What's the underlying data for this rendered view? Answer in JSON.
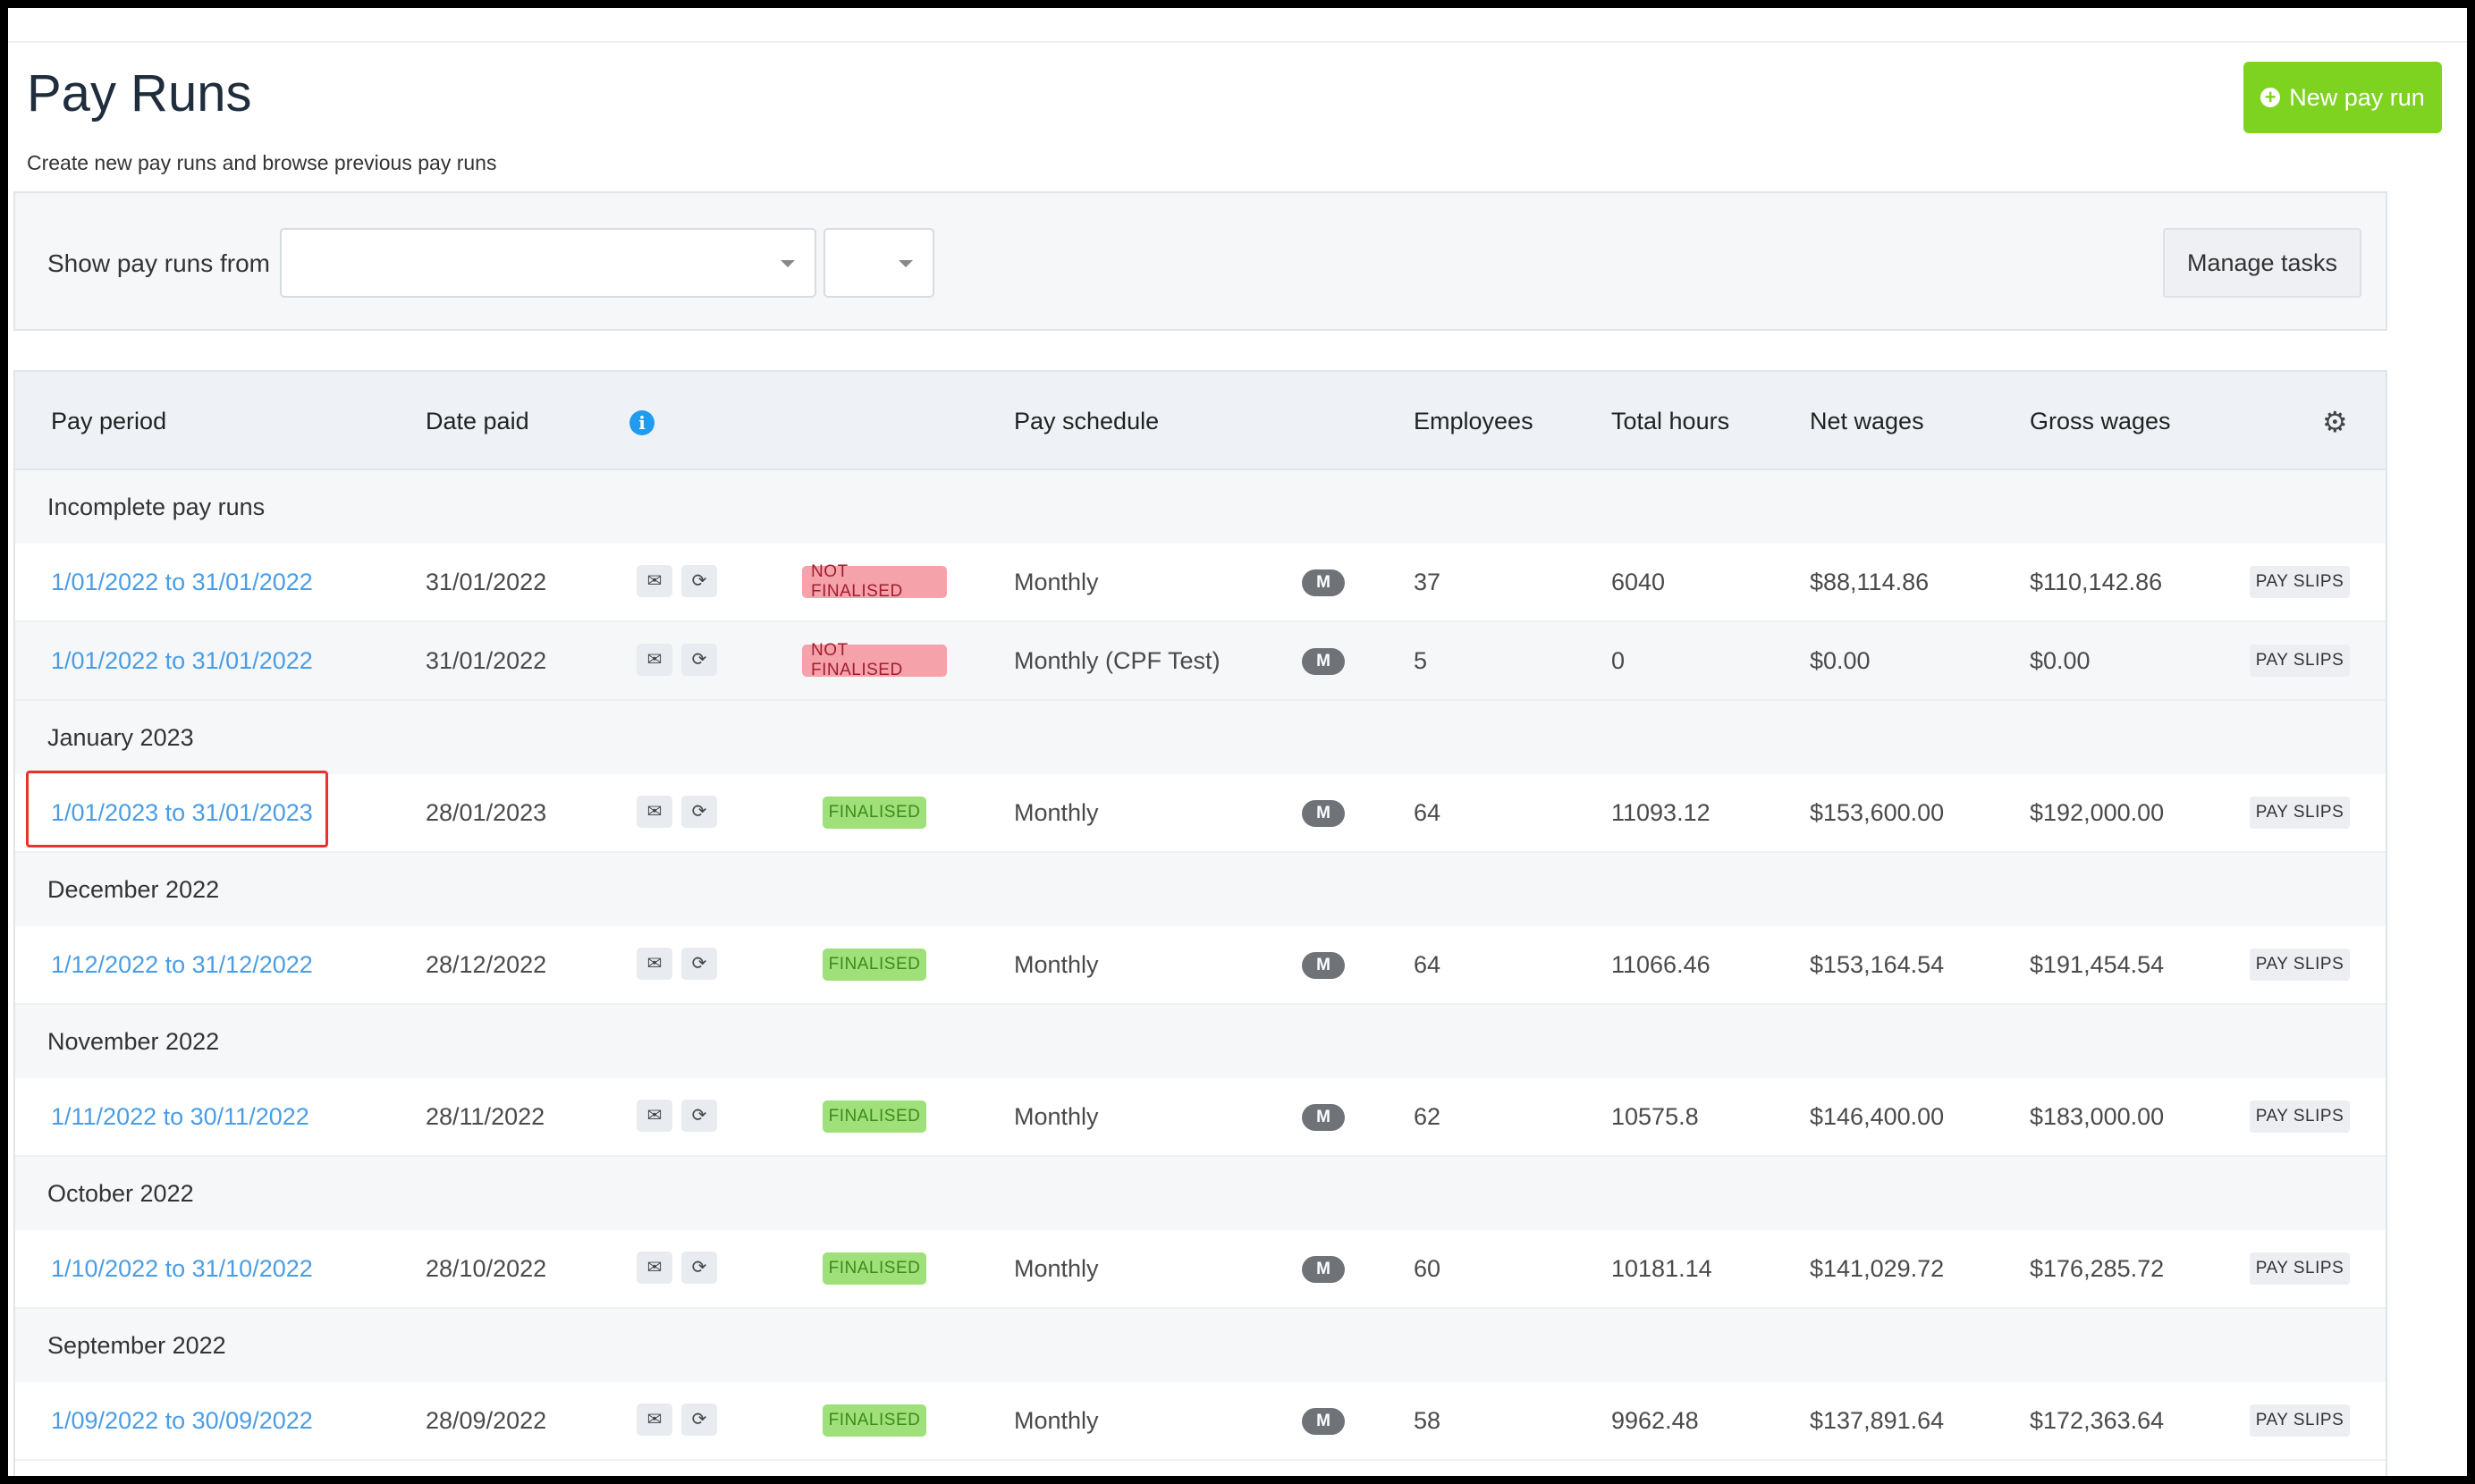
{
  "page": {
    "title": "Pay Runs",
    "subtitle": "Create new pay runs and browse previous pay runs",
    "new_button_label": "New pay run"
  },
  "filter": {
    "label": "Show pay runs from",
    "select_primary_value": "",
    "select_secondary_value": "",
    "manage_tasks_label": "Manage tasks"
  },
  "table": {
    "headers": {
      "pay_period": "Pay period",
      "date_paid": "Date paid",
      "pay_schedule": "Pay schedule",
      "employees": "Employees",
      "total_hours": "Total hours",
      "net_wages": "Net wages",
      "gross_wages": "Gross wages"
    },
    "groups": [
      {
        "label": "Incomplete pay runs",
        "rows": [
          {
            "period": "1/01/2022 to 31/01/2022",
            "date_paid": "31/01/2022",
            "status": "NOT FINALISED",
            "schedule": "Monthly",
            "freq": "M",
            "employees": "37",
            "hours": "6040",
            "net": "$88,114.86",
            "gross": "$110,142.86",
            "payslips": "PAY SLIPS"
          },
          {
            "period": "1/01/2022 to 31/01/2022",
            "date_paid": "31/01/2022",
            "status": "NOT FINALISED",
            "schedule": "Monthly (CPF Test)",
            "freq": "M",
            "employees": "5",
            "hours": "0",
            "net": "$0.00",
            "gross": "$0.00",
            "payslips": "PAY SLIPS"
          }
        ]
      },
      {
        "label": "January 2023",
        "rows": [
          {
            "period": "1/01/2023 to 31/01/2023",
            "date_paid": "28/01/2023",
            "status": "FINALISED",
            "schedule": "Monthly",
            "freq": "M",
            "employees": "64",
            "hours": "11093.12",
            "net": "$153,600.00",
            "gross": "$192,000.00",
            "payslips": "PAY SLIPS"
          }
        ]
      },
      {
        "label": "December 2022",
        "rows": [
          {
            "period": "1/12/2022 to 31/12/2022",
            "date_paid": "28/12/2022",
            "status": "FINALISED",
            "schedule": "Monthly",
            "freq": "M",
            "employees": "64",
            "hours": "11066.46",
            "net": "$153,164.54",
            "gross": "$191,454.54",
            "payslips": "PAY SLIPS"
          }
        ]
      },
      {
        "label": "November 2022",
        "rows": [
          {
            "period": "1/11/2022 to 30/11/2022",
            "date_paid": "28/11/2022",
            "status": "FINALISED",
            "schedule": "Monthly",
            "freq": "M",
            "employees": "62",
            "hours": "10575.8",
            "net": "$146,400.00",
            "gross": "$183,000.00",
            "payslips": "PAY SLIPS"
          }
        ]
      },
      {
        "label": "October 2022",
        "rows": [
          {
            "period": "1/10/2022 to 31/10/2022",
            "date_paid": "28/10/2022",
            "status": "FINALISED",
            "schedule": "Monthly",
            "freq": "M",
            "employees": "60",
            "hours": "10181.14",
            "net": "$141,029.72",
            "gross": "$176,285.72",
            "payslips": "PAY SLIPS"
          }
        ]
      },
      {
        "label": "September 2022",
        "rows": [
          {
            "period": "1/09/2022 to 30/09/2022",
            "date_paid": "28/09/2022",
            "status": "FINALISED",
            "schedule": "Monthly",
            "freq": "M",
            "employees": "58",
            "hours": "9962.48",
            "net": "$137,891.64",
            "gross": "$172,363.64",
            "payslips": "PAY SLIPS"
          }
        ]
      }
    ]
  },
  "icons": {
    "new": "plus-circle-icon",
    "info": "info-icon",
    "settings": "gear-icon",
    "email": "envelope-icon",
    "refresh": "refresh-icon"
  },
  "colors": {
    "primary_button": "#7ed321",
    "link": "#4a9de5",
    "not_finalised_bg": "#f5a2ab",
    "finalised_bg": "#9fe07a",
    "highlight_border": "#e8322a"
  }
}
